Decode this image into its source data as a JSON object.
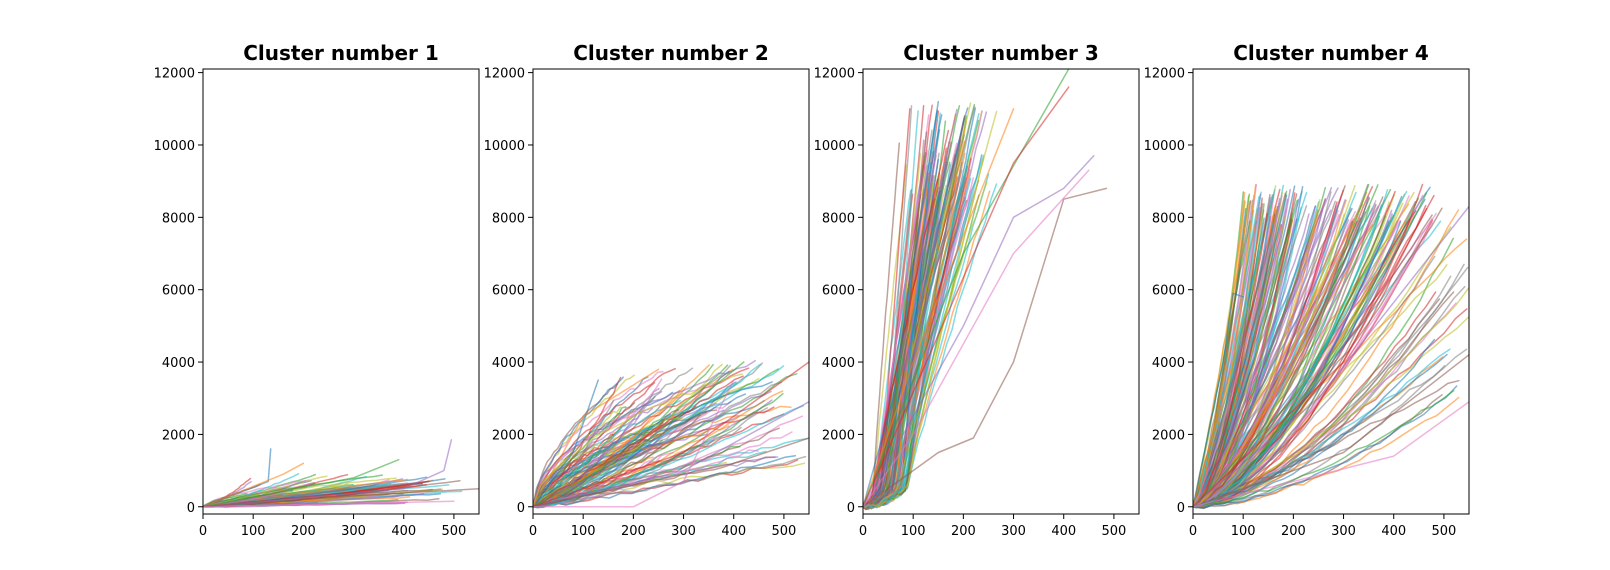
{
  "chart_data": [
    {
      "type": "line",
      "title": "Cluster number 1",
      "xlim": [
        0,
        550
      ],
      "ylim": [
        -200,
        12100
      ],
      "x_ticks": [
        "0",
        "100",
        "200",
        "300",
        "400",
        "500"
      ],
      "y_ticks": [
        "0",
        "2000",
        "4000",
        "6000",
        "8000",
        "10000",
        "12000"
      ],
      "grid": false,
      "legend": "none",
      "series_count_estimate": 90,
      "sample_series": [
        {
          "x": [
            0,
            130,
            135
          ],
          "y": [
            0,
            700,
            1600
          ]
        },
        {
          "x": [
            0,
            160,
            200
          ],
          "y": [
            0,
            900,
            1200
          ]
        },
        {
          "x": [
            0,
            300,
            390
          ],
          "y": [
            0,
            800,
            1300
          ]
        },
        {
          "x": [
            0,
            300,
            450
          ],
          "y": [
            0,
            400,
            700
          ]
        },
        {
          "x": [
            0,
            400,
            480,
            495
          ],
          "y": [
            0,
            500,
            1000,
            1850
          ]
        },
        {
          "x": [
            0,
            300,
            550
          ],
          "y": [
            0,
            300,
            500
          ]
        },
        {
          "x": [
            0,
            500
          ],
          "y": [
            0,
            150
          ]
        }
      ]
    },
    {
      "type": "line",
      "title": "Cluster number 2",
      "xlim": [
        0,
        550
      ],
      "ylim": [
        -200,
        12100
      ],
      "x_ticks": [
        "0",
        "100",
        "200",
        "300",
        "400",
        "500"
      ],
      "y_ticks": [
        "0",
        "2000",
        "4000",
        "6000",
        "8000",
        "10000",
        "12000"
      ],
      "grid": false,
      "legend": "none",
      "series_count_estimate": 120,
      "sample_series": [
        {
          "x": [
            0,
            80,
            130
          ],
          "y": [
            0,
            1500,
            3500
          ]
        },
        {
          "x": [
            0,
            100,
            250
          ],
          "y": [
            0,
            2500,
            3800
          ]
        },
        {
          "x": [
            0,
            200,
            420
          ],
          "y": [
            0,
            1500,
            4000
          ]
        },
        {
          "x": [
            0,
            300,
            550
          ],
          "y": [
            0,
            1500,
            4000
          ]
        },
        {
          "x": [
            0,
            300,
            550
          ],
          "y": [
            0,
            1000,
            2900
          ]
        },
        {
          "x": [
            0,
            400,
            550
          ],
          "y": [
            0,
            1200,
            1900
          ]
        },
        {
          "x": [
            0,
            200,
            300,
            400
          ],
          "y": [
            0,
            0,
            700,
            3500
          ]
        }
      ]
    },
    {
      "type": "line",
      "title": "Cluster number 3",
      "xlim": [
        0,
        550
      ],
      "ylim": [
        -200,
        12100
      ],
      "x_ticks": [
        "0",
        "100",
        "200",
        "300",
        "400",
        "500"
      ],
      "y_ticks": [
        "0",
        "2000",
        "4000",
        "6000",
        "8000",
        "10000",
        "12000"
      ],
      "grid": false,
      "legend": "none",
      "series_count_estimate": 120,
      "sample_series": [
        {
          "x": [
            0,
            60,
            150
          ],
          "y": [
            0,
            3000,
            11200
          ]
        },
        {
          "x": [
            0,
            100,
            300
          ],
          "y": [
            0,
            4000,
            11000
          ]
        },
        {
          "x": [
            0,
            200,
            410
          ],
          "y": [
            0,
            7000,
            12100
          ]
        },
        {
          "x": [
            0,
            300,
            410
          ],
          "y": [
            0,
            9500,
            11600
          ]
        },
        {
          "x": [
            0,
            200,
            300,
            400,
            460
          ],
          "y": [
            0,
            5000,
            8000,
            8800,
            9700
          ]
        },
        {
          "x": [
            0,
            150,
            220,
            300,
            400,
            485
          ],
          "y": [
            0,
            1500,
            1900,
            4000,
            8500,
            8800
          ]
        },
        {
          "x": [
            0,
            100,
            300,
            450
          ],
          "y": [
            0,
            2000,
            7000,
            9300
          ]
        }
      ]
    },
    {
      "type": "line",
      "title": "Cluster number 4",
      "xlim": [
        0,
        550
      ],
      "ylim": [
        -200,
        12100
      ],
      "x_ticks": [
        "0",
        "100",
        "200",
        "300",
        "400",
        "500"
      ],
      "y_ticks": [
        "0",
        "2000",
        "4000",
        "6000",
        "8000",
        "10000",
        "12000"
      ],
      "grid": false,
      "legend": "none",
      "series_count_estimate": 200,
      "sample_series": [
        {
          "x": [
            0,
            60,
            80,
            100
          ],
          "y": [
            0,
            4000,
            5900,
            5800
          ]
        },
        {
          "x": [
            0,
            80,
            125
          ],
          "y": [
            0,
            4000,
            8900
          ]
        },
        {
          "x": [
            0,
            200,
            350
          ],
          "y": [
            0,
            3000,
            8900
          ]
        },
        {
          "x": [
            0,
            300,
            480
          ],
          "y": [
            0,
            4000,
            8600
          ]
        },
        {
          "x": [
            0,
            250,
            550
          ],
          "y": [
            0,
            3000,
            8300
          ]
        },
        {
          "x": [
            0,
            300,
            550
          ],
          "y": [
            0,
            1500,
            4200
          ]
        },
        {
          "x": [
            0,
            400,
            550
          ],
          "y": [
            0,
            1400,
            2900
          ]
        }
      ]
    }
  ],
  "colors": [
    "#1f77b4",
    "#ff7f0e",
    "#2ca02c",
    "#d62728",
    "#9467bd",
    "#8c564b",
    "#e377c2",
    "#7f7f7f",
    "#bcbd22",
    "#17becf"
  ]
}
